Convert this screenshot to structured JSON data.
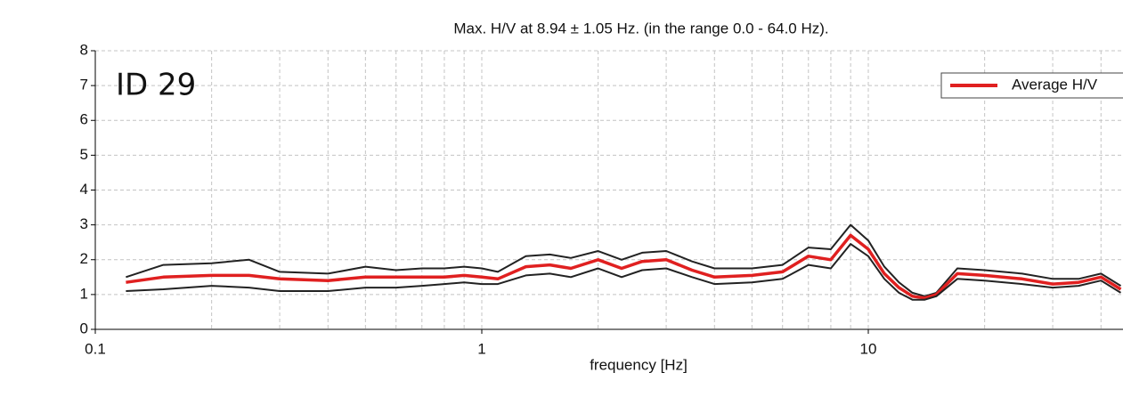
{
  "chart_data": {
    "type": "line",
    "title": "Max. H/V at 8.94 ± 1.05 Hz. (in the range 0.0 - 64.0 Hz).",
    "annotation": "ID 29",
    "x_label": "frequency [Hz]",
    "log_x": true,
    "grid": true,
    "legend": "upper right",
    "xlim": [
      0.1,
      100
    ],
    "xticks": [
      0.1,
      1,
      10
    ],
    "xgrid": [
      0.2,
      0.3,
      0.4,
      0.5,
      0.6,
      0.7,
      0.8,
      0.9,
      2,
      3,
      4,
      5,
      6,
      7,
      8,
      9,
      20,
      30,
      40,
      50,
      60,
      70,
      80,
      90
    ],
    "ylim": [
      0,
      8
    ],
    "yticks": [
      0,
      1,
      2,
      3,
      4,
      5,
      6,
      7,
      8
    ],
    "x": [
      0.12,
      0.15,
      0.2,
      0.25,
      0.3,
      0.4,
      0.5,
      0.6,
      0.7,
      0.8,
      0.9,
      1.0,
      1.1,
      1.3,
      1.5,
      1.7,
      2.0,
      2.3,
      2.6,
      3.0,
      3.5,
      4,
      5,
      6,
      7,
      8,
      9,
      10,
      11,
      12,
      13,
      14,
      15,
      17,
      20,
      25,
      30,
      35,
      40,
      45
    ],
    "series": [
      {
        "color": "#222222",
        "width": 2,
        "values": [
          1.5,
          1.85,
          1.9,
          2.0,
          1.65,
          1.6,
          1.8,
          1.7,
          1.75,
          1.75,
          1.8,
          1.75,
          1.65,
          2.1,
          2.15,
          2.05,
          2.25,
          2.0,
          2.2,
          2.25,
          1.95,
          1.75,
          1.75,
          1.85,
          2.35,
          2.3,
          3.0,
          2.55,
          1.8,
          1.35,
          1.05,
          0.95,
          1.05,
          1.75,
          1.7,
          1.6,
          1.45,
          1.45,
          1.6,
          1.25
        ]
      },
      {
        "name": "Average H/V",
        "color": "#e02020",
        "width": 3.5,
        "values": [
          1.35,
          1.5,
          1.55,
          1.55,
          1.45,
          1.4,
          1.5,
          1.5,
          1.5,
          1.5,
          1.55,
          1.5,
          1.45,
          1.8,
          1.85,
          1.75,
          2.0,
          1.75,
          1.95,
          2.0,
          1.7,
          1.5,
          1.55,
          1.65,
          2.1,
          2.0,
          2.7,
          2.3,
          1.6,
          1.2,
          0.95,
          0.9,
          1.0,
          1.6,
          1.55,
          1.45,
          1.3,
          1.35,
          1.5,
          1.15
        ]
      },
      {
        "color": "#222222",
        "width": 2,
        "values": [
          1.1,
          1.15,
          1.25,
          1.2,
          1.1,
          1.1,
          1.2,
          1.2,
          1.25,
          1.3,
          1.35,
          1.3,
          1.3,
          1.55,
          1.6,
          1.5,
          1.75,
          1.5,
          1.7,
          1.75,
          1.5,
          1.3,
          1.35,
          1.45,
          1.85,
          1.75,
          2.45,
          2.1,
          1.45,
          1.05,
          0.85,
          0.85,
          0.95,
          1.45,
          1.4,
          1.3,
          1.2,
          1.25,
          1.4,
          1.05
        ]
      }
    ]
  }
}
